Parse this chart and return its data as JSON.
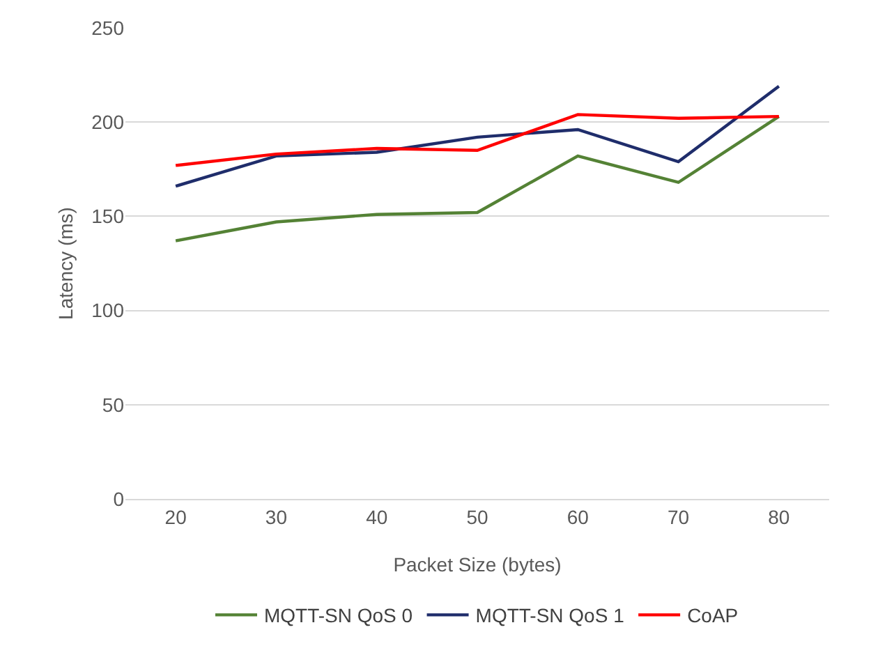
{
  "chart_data": {
    "type": "line",
    "xlabel": "Packet Size (bytes)",
    "ylabel": "Latency (ms)",
    "categories": [
      "20",
      "30",
      "40",
      "50",
      "60",
      "70",
      "80"
    ],
    "series": [
      {
        "name": "MQTT-SN QoS 0",
        "color": "#548235",
        "values": [
          137,
          147,
          151,
          152,
          182,
          168,
          203
        ]
      },
      {
        "name": "MQTT-SN QoS 1",
        "color": "#1f2d6b",
        "values": [
          166,
          182,
          184,
          192,
          196,
          179,
          219
        ]
      },
      {
        "name": "CoAP",
        "color": "#ff0000",
        "values": [
          177,
          183,
          186,
          185,
          204,
          202,
          203
        ]
      }
    ],
    "ylim": [
      0,
      250
    ],
    "yticks": [
      0,
      50,
      100,
      150,
      200,
      250
    ],
    "grid": "y",
    "legend": "bottom",
    "marker": "none",
    "line_style": "solid"
  }
}
